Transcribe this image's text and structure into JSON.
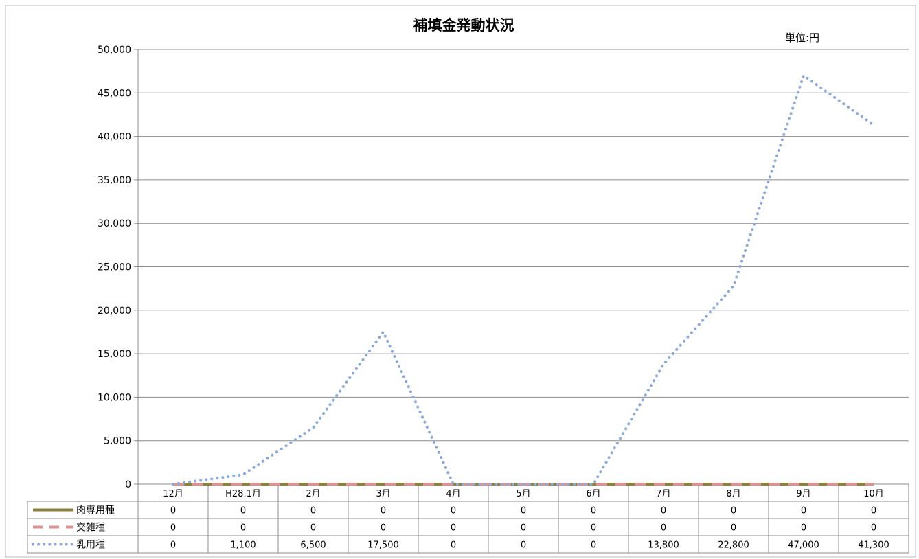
{
  "chart_data": {
    "type": "line",
    "title": "補填金発動状況",
    "unit_label": "単位:円",
    "categories": [
      "12月",
      "H28.1月",
      "2月",
      "3月",
      "4月",
      "5月",
      "6月",
      "7月",
      "8月",
      "9月",
      "10月"
    ],
    "y_ticks": [
      "0",
      "5,000",
      "10,000",
      "15,000",
      "20,000",
      "25,000",
      "30,000",
      "35,000",
      "40,000",
      "45,000",
      "50,000"
    ],
    "ylim": [
      0,
      50000
    ],
    "grid": true,
    "legend": "data-table",
    "series": [
      {
        "name": "肉専用種",
        "values": [
          0,
          0,
          0,
          0,
          0,
          0,
          0,
          0,
          0,
          0,
          0
        ],
        "labels": [
          "0",
          "0",
          "0",
          "0",
          "0",
          "0",
          "0",
          "0",
          "0",
          "0",
          "0"
        ],
        "color": "#8B8240",
        "style": "solid"
      },
      {
        "name": "交雑種",
        "values": [
          0,
          0,
          0,
          0,
          0,
          0,
          0,
          0,
          0,
          0,
          0
        ],
        "labels": [
          "0",
          "0",
          "0",
          "0",
          "0",
          "0",
          "0",
          "0",
          "0",
          "0",
          "0"
        ],
        "color": "#DE9292",
        "style": "dashed"
      },
      {
        "name": "乳用種",
        "values": [
          0,
          1100,
          6500,
          17500,
          0,
          0,
          0,
          13800,
          22800,
          47000,
          41300
        ],
        "labels": [
          "0",
          "1,100",
          "6,500",
          "17,500",
          "0",
          "0",
          "0",
          "13,800",
          "22,800",
          "47,000",
          "41,300"
        ],
        "color": "#8DAAD6",
        "style": "dotted"
      }
    ]
  }
}
